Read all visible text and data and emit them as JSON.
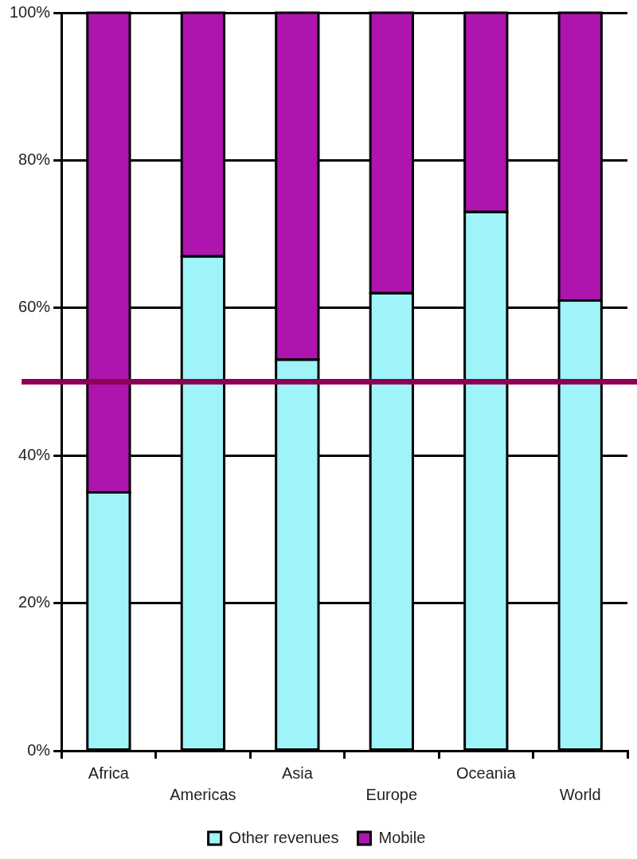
{
  "chart_data": {
    "type": "bar",
    "stacked": true,
    "categories": [
      "Africa",
      "Americas",
      "Asia",
      "Europe",
      "Oceania",
      "World"
    ],
    "series": [
      {
        "name": "Other revenues",
        "color": "#9ef4f8",
        "values": [
          35,
          67,
          53,
          62,
          73,
          61
        ]
      },
      {
        "name": "Mobile",
        "color": "#ae14ae",
        "values": [
          65,
          33,
          47,
          38,
          27,
          39
        ]
      }
    ],
    "ylim": [
      0,
      100
    ],
    "yticks": [
      {
        "value": 0,
        "label": "0%"
      },
      {
        "value": 20,
        "label": "20%"
      },
      {
        "value": 40,
        "label": "40%"
      },
      {
        "value": 60,
        "label": "60%"
      },
      {
        "value": 80,
        "label": "80%"
      },
      {
        "value": 100,
        "label": "100%"
      }
    ],
    "ref_lines": [
      {
        "axis": "y",
        "value": 50,
        "color": "#8c0055"
      }
    ],
    "grid": "y",
    "legend": "bottom"
  }
}
